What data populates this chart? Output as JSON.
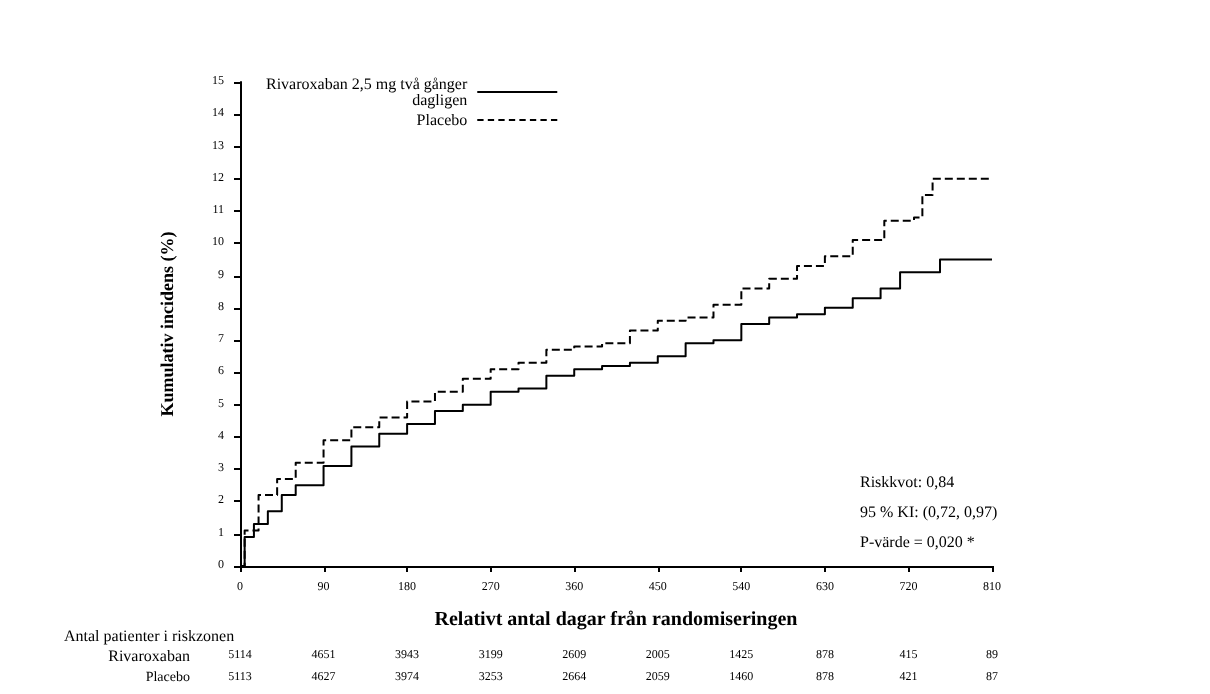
{
  "chart_data": {
    "type": "step",
    "xlabel": "Relativt antal dagar från randomiseringen",
    "ylabel": "Kumulativ incidens (%)",
    "xlim": [
      0,
      810
    ],
    "xticks": [
      0,
      90,
      180,
      270,
      360,
      450,
      540,
      630,
      720,
      810
    ],
    "ylim": [
      0,
      15
    ],
    "yticks": [
      0,
      1,
      2,
      3,
      4,
      5,
      6,
      7,
      8,
      9,
      10,
      11,
      12,
      13,
      14,
      15
    ],
    "grid": false,
    "legend": "top left",
    "marker": "none",
    "series": [
      {
        "name": "Rivaroxaban 2,5 mg två gånger dagligen",
        "color": "#000000",
        "line_style": "solid",
        "x": [
          0,
          5,
          15,
          30,
          45,
          60,
          90,
          120,
          150,
          180,
          210,
          240,
          270,
          300,
          330,
          360,
          390,
          420,
          450,
          480,
          510,
          540,
          570,
          600,
          630,
          660,
          690,
          711,
          754,
          810
        ],
        "values": [
          0,
          0.9,
          1.3,
          1.7,
          2.2,
          2.5,
          3.1,
          3.7,
          4.1,
          4.4,
          4.8,
          5.0,
          5.4,
          5.5,
          5.9,
          6.1,
          6.2,
          6.3,
          6.5,
          6.9,
          7.0,
          7.5,
          7.7,
          7.8,
          8.0,
          8.3,
          8.6,
          9.1,
          9.5,
          9.5
        ]
      },
      {
        "name": "Placebo",
        "color": "#000000",
        "line_style": "dashed",
        "x": [
          0,
          5,
          20,
          40,
          60,
          90,
          120,
          150,
          180,
          210,
          240,
          270,
          300,
          330,
          360,
          390,
          420,
          450,
          480,
          510,
          540,
          570,
          600,
          630,
          660,
          694,
          726,
          735,
          746,
          810
        ],
        "values": [
          0,
          1.1,
          2.2,
          2.7,
          3.2,
          3.9,
          4.3,
          4.6,
          5.1,
          5.4,
          5.8,
          6.1,
          6.3,
          6.7,
          6.8,
          6.9,
          7.3,
          7.6,
          7.7,
          8.1,
          8.6,
          8.9,
          9.3,
          9.6,
          10.1,
          10.7,
          10.8,
          11.5,
          12,
          12
        ]
      }
    ],
    "annotations": [
      "Riskkvot: 0,84",
      "95 % KI: (0,72, 0,97)",
      "P-värde = 0,020 *",
      "Antal patienter i riskzonen",
      "Rivaroxaban",
      "5114",
      "4651",
      "3943",
      "3199",
      "2609",
      "2005",
      "1425",
      "878",
      "415",
      "89",
      "Placebo",
      "5113",
      "4627",
      "3974",
      "3253",
      "2664",
      "2059",
      "1460",
      "878",
      "421",
      "87"
    ]
  }
}
